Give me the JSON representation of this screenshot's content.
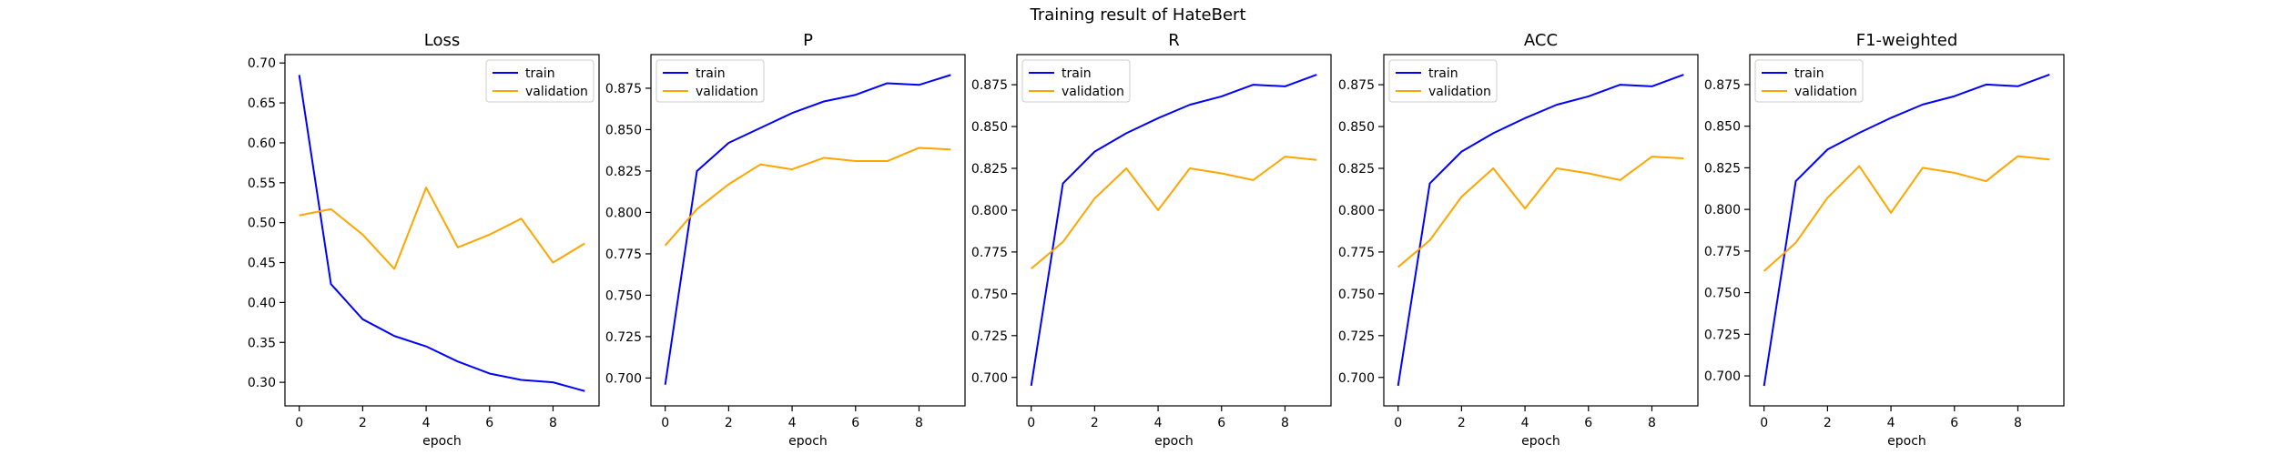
{
  "figure": {
    "title": "Training result of HateBert"
  },
  "colors": {
    "train": "#0000ff",
    "validation": "#ffa500",
    "axes": "#000000",
    "legend_border": "#cccccc"
  },
  "chart_data": [
    {
      "type": "line",
      "title": "Loss",
      "xlabel": "epoch",
      "ylabel": "",
      "x": [
        0,
        1,
        2,
        3,
        4,
        5,
        6,
        7,
        8,
        9
      ],
      "xlim": [
        -0.45,
        9.45
      ],
      "ylim": [
        0.2705,
        0.7105
      ],
      "xticks": [
        0,
        2,
        4,
        6,
        8
      ],
      "yticks": [
        0.3,
        0.35,
        0.4,
        0.45,
        0.5,
        0.55,
        0.6,
        0.65,
        0.7
      ],
      "ytick_labels": [
        "0.30",
        "0.35",
        "0.40",
        "0.45",
        "0.50",
        "0.55",
        "0.60",
        "0.65",
        "0.70"
      ],
      "legend": "upper-right",
      "grid": false,
      "series": [
        {
          "name": "train",
          "color": "#0000ff",
          "values": [
            0.685,
            0.423,
            0.379,
            0.358,
            0.345,
            0.326,
            0.311,
            0.303,
            0.3,
            0.289
          ]
        },
        {
          "name": "validation",
          "color": "#ffa500",
          "values": [
            0.509,
            0.517,
            0.485,
            0.442,
            0.544,
            0.469,
            0.485,
            0.505,
            0.45,
            0.474
          ]
        }
      ]
    },
    {
      "type": "line",
      "title": "P",
      "xlabel": "epoch",
      "ylabel": "",
      "x": [
        0,
        1,
        2,
        3,
        4,
        5,
        6,
        7,
        8,
        9
      ],
      "xlim": [
        -0.45,
        9.45
      ],
      "ylim": [
        0.6832,
        0.8953
      ],
      "xticks": [
        0,
        2,
        4,
        6,
        8
      ],
      "yticks": [
        0.7,
        0.725,
        0.75,
        0.775,
        0.8,
        0.825,
        0.85,
        0.875
      ],
      "ytick_labels": [
        "0.700",
        "0.725",
        "0.750",
        "0.775",
        "0.800",
        "0.825",
        "0.850",
        "0.875"
      ],
      "legend": "upper-left",
      "grid": false,
      "series": [
        {
          "name": "train",
          "color": "#0000ff",
          "values": [
            0.696,
            0.825,
            0.842,
            0.851,
            0.86,
            0.867,
            0.871,
            0.878,
            0.877,
            0.883
          ]
        },
        {
          "name": "validation",
          "color": "#ffa500",
          "values": [
            0.78,
            0.802,
            0.817,
            0.829,
            0.826,
            0.833,
            0.831,
            0.831,
            0.839,
            0.838
          ]
        }
      ]
    },
    {
      "type": "line",
      "title": "R",
      "xlabel": "epoch",
      "ylabel": "",
      "x": [
        0,
        1,
        2,
        3,
        4,
        5,
        6,
        7,
        8,
        9
      ],
      "xlim": [
        -0.45,
        9.45
      ],
      "ylim": [
        0.683,
        0.893
      ],
      "xticks": [
        0,
        2,
        4,
        6,
        8
      ],
      "yticks": [
        0.7,
        0.725,
        0.75,
        0.775,
        0.8,
        0.825,
        0.85,
        0.875
      ],
      "ytick_labels": [
        "0.700",
        "0.725",
        "0.750",
        "0.775",
        "0.800",
        "0.825",
        "0.850",
        "0.875"
      ],
      "legend": "upper-left",
      "grid": false,
      "series": [
        {
          "name": "train",
          "color": "#0000ff",
          "values": [
            0.695,
            0.816,
            0.835,
            0.846,
            0.855,
            0.863,
            0.868,
            0.875,
            0.874,
            0.881
          ]
        },
        {
          "name": "validation",
          "color": "#ffa500",
          "values": [
            0.765,
            0.781,
            0.807,
            0.825,
            0.8,
            0.825,
            0.822,
            0.818,
            0.832,
            0.83
          ]
        }
      ]
    },
    {
      "type": "line",
      "title": "ACC",
      "xlabel": "epoch",
      "ylabel": "",
      "x": [
        0,
        1,
        2,
        3,
        4,
        5,
        6,
        7,
        8,
        9
      ],
      "xlim": [
        -0.45,
        9.45
      ],
      "ylim": [
        0.683,
        0.893
      ],
      "xticks": [
        0,
        2,
        4,
        6,
        8
      ],
      "yticks": [
        0.7,
        0.725,
        0.75,
        0.775,
        0.8,
        0.825,
        0.85,
        0.875
      ],
      "ytick_labels": [
        "0.700",
        "0.725",
        "0.750",
        "0.775",
        "0.800",
        "0.825",
        "0.850",
        "0.875"
      ],
      "legend": "upper-left",
      "grid": false,
      "series": [
        {
          "name": "train",
          "color": "#0000ff",
          "values": [
            0.695,
            0.816,
            0.835,
            0.846,
            0.855,
            0.863,
            0.868,
            0.875,
            0.874,
            0.881
          ]
        },
        {
          "name": "validation",
          "color": "#ffa500",
          "values": [
            0.766,
            0.782,
            0.808,
            0.825,
            0.801,
            0.825,
            0.822,
            0.818,
            0.832,
            0.831
          ]
        }
      ]
    },
    {
      "type": "line",
      "title": "F1-weighted",
      "xlabel": "epoch",
      "ylabel": "",
      "x": [
        0,
        1,
        2,
        3,
        4,
        5,
        6,
        7,
        8,
        9
      ],
      "xlim": [
        -0.45,
        9.45
      ],
      "ylim": [
        0.682,
        0.893
      ],
      "xticks": [
        0,
        2,
        4,
        6,
        8
      ],
      "yticks": [
        0.7,
        0.725,
        0.75,
        0.775,
        0.8,
        0.825,
        0.85,
        0.875
      ],
      "ytick_labels": [
        "0.700",
        "0.725",
        "0.750",
        "0.775",
        "0.800",
        "0.825",
        "0.850",
        "0.875"
      ],
      "legend": "upper-left",
      "grid": false,
      "series": [
        {
          "name": "train",
          "color": "#0000ff",
          "values": [
            0.694,
            0.817,
            0.836,
            0.846,
            0.855,
            0.863,
            0.868,
            0.875,
            0.874,
            0.881
          ]
        },
        {
          "name": "validation",
          "color": "#ffa500",
          "values": [
            0.763,
            0.78,
            0.807,
            0.826,
            0.798,
            0.825,
            0.822,
            0.817,
            0.832,
            0.83
          ]
        }
      ]
    }
  ]
}
